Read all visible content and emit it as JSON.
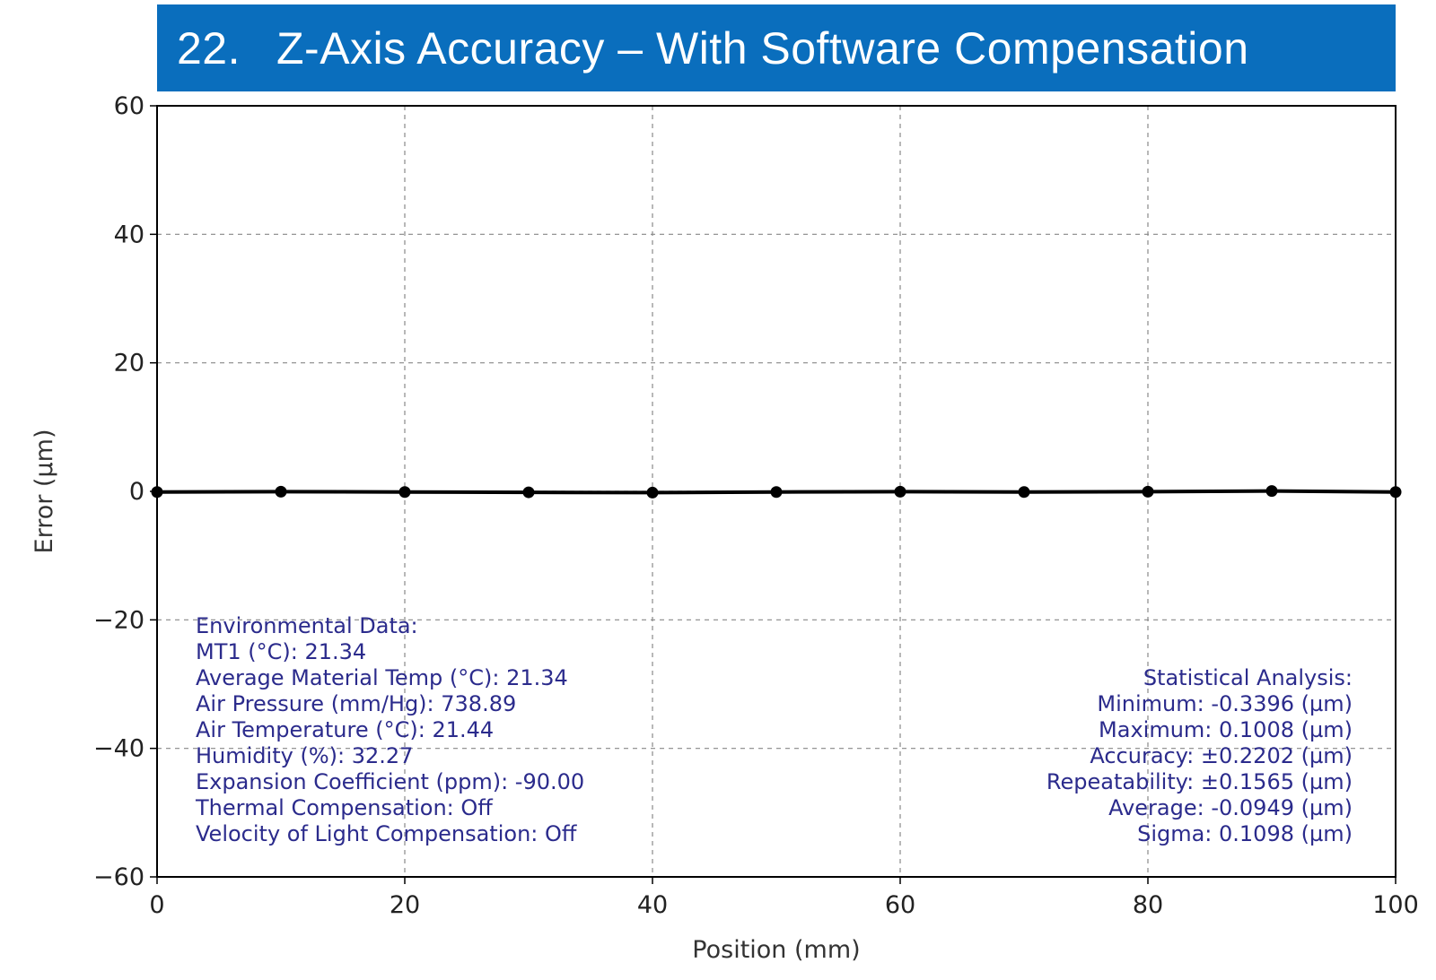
{
  "header": {
    "number": "22.",
    "title": "Z-Axis Accuracy – With Software Compensation"
  },
  "colors": {
    "banner": "#0a6ebd",
    "line": "#000000",
    "annotation_text": "#2b2b8c",
    "grid": "#888888"
  },
  "chart_data": {
    "type": "line",
    "xlabel": "Position (mm)",
    "ylabel": "Error (µm)",
    "xlim": [
      0,
      100
    ],
    "ylim": [
      -60,
      60
    ],
    "xticks": [
      "0",
      "20",
      "40",
      "60",
      "80",
      "100"
    ],
    "yticks": [
      "60",
      "40",
      "20",
      "0",
      "−20",
      "−40",
      "−60"
    ],
    "xtick_values": [
      0,
      20,
      40,
      60,
      80,
      100
    ],
    "ytick_values": [
      60,
      40,
      20,
      0,
      -20,
      -40,
      -60
    ],
    "grid": true,
    "series": [
      {
        "x": [
          0,
          10,
          20,
          30,
          40,
          50,
          60,
          70,
          80,
          90,
          100
        ],
        "y": [
          -0.1,
          -0.05,
          -0.1,
          -0.15,
          -0.2,
          -0.1,
          -0.05,
          -0.1,
          -0.05,
          0.05,
          -0.1
        ]
      }
    ]
  },
  "environmental": [
    "Environmental Data:",
    "MT1 (°C): 21.34",
    "Average Material Temp (°C): 21.34",
    "Air Pressure (mm/Hg): 738.89",
    "Air Temperature (°C): 21.44",
    "Humidity (%): 32.27",
    "Expansion Coefficient (ppm): -90.00",
    "Thermal Compensation: Off",
    "Velocity of Light Compensation: Off"
  ],
  "statistics": [
    "Statistical Analysis:",
    "Minimum: -0.3396 (µm)",
    "Maximum: 0.1008 (µm)",
    "Accuracy: ±0.2202 (µm)",
    "Repeatability: ±0.1565 (µm)",
    "Average: -0.0949 (µm)",
    "Sigma: 0.1098 (µm)"
  ]
}
